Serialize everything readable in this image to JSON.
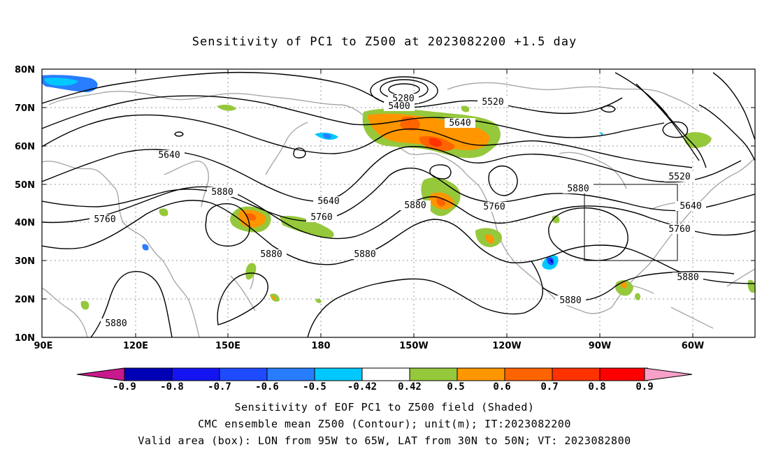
{
  "title": "Sensitivity of PC1 to Z500 at 2023082200 +1.5 day",
  "map": {
    "lat_labels": [
      "80N",
      "70N",
      "60N",
      "50N",
      "40N",
      "30N",
      "20N",
      "10N"
    ],
    "lon_labels": [
      "90E",
      "120E",
      "150E",
      "180",
      "150W",
      "120W",
      "90W",
      "60W"
    ],
    "contour_labels": [
      {
        "text": "5280"
      },
      {
        "text": "5400"
      },
      {
        "text": "5520"
      },
      {
        "text": "5640"
      },
      {
        "text": "5640"
      },
      {
        "text": "5640"
      },
      {
        "text": "5520"
      },
      {
        "text": "5640"
      },
      {
        "text": "5880"
      },
      {
        "text": "5760"
      },
      {
        "text": "5880"
      },
      {
        "text": "5760"
      },
      {
        "text": "5880"
      },
      {
        "text": "5760"
      },
      {
        "text": "5760"
      },
      {
        "text": "5880"
      },
      {
        "text": "5880"
      },
      {
        "text": "5880"
      },
      {
        "text": "5880"
      },
      {
        "text": "5880"
      }
    ],
    "valid_box": {
      "lon_range": [
        "95W",
        "65W"
      ],
      "lat_range": [
        "30N",
        "50N"
      ]
    }
  },
  "colorbar": {
    "ticks": [
      "-0.9",
      "-0.8",
      "-0.7",
      "-0.6",
      "-0.5",
      "-0.42",
      "0.42",
      "0.5",
      "0.6",
      "0.7",
      "0.8",
      "0.9"
    ],
    "colors": [
      "#c8198c",
      "#0000b4",
      "#1414f0",
      "#1e4bff",
      "#287dff",
      "#00c8ff",
      "#ffffff",
      "#96c83c",
      "#ff9600",
      "#ff6400",
      "#ff3200",
      "#ff0000",
      "#f7a0c8"
    ]
  },
  "footer": {
    "line1": "Sensitivity of EOF PC1 to Z500 field (Shaded)",
    "line2": "CMC ensemble mean Z500 (Contour); unit(m); IT:2023082200",
    "line3": "Valid area (box): LON from 95W to 65W, LAT from 30N to 50N; VT: 2023082800"
  }
}
